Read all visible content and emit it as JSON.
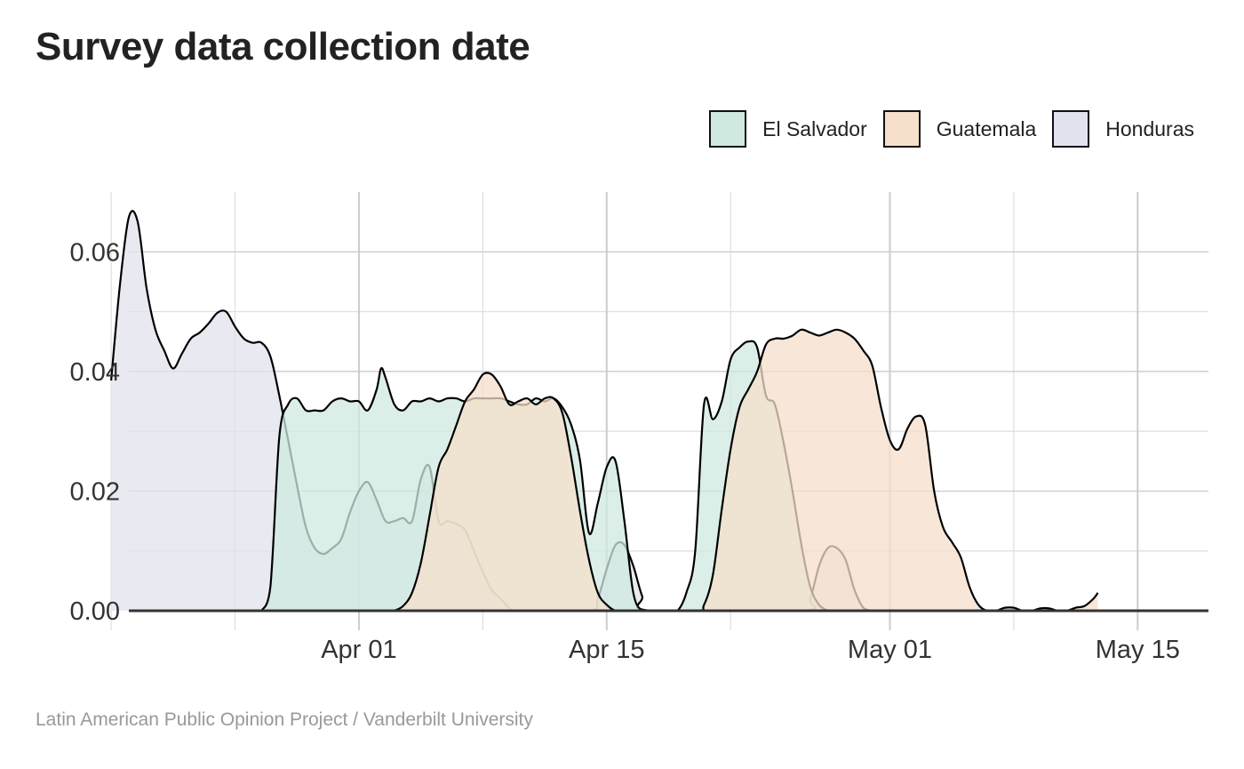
{
  "chart_data": {
    "type": "area",
    "title": "Survey data collection date",
    "caption": "Latin American Public Opinion Project / Vanderbilt University",
    "xlabel": "",
    "ylabel": "",
    "xlim": [
      "2023-03-19",
      "2023-05-19"
    ],
    "ylim": [
      0,
      0.07
    ],
    "x_ticks": [
      {
        "date": "2023-04-01",
        "label": "Apr 01"
      },
      {
        "date": "2023-04-15",
        "label": "Apr 15"
      },
      {
        "date": "2023-05-01",
        "label": "May 01"
      },
      {
        "date": "2023-05-15",
        "label": "May 15"
      }
    ],
    "x_minor_ticks": [
      "2023-03-18",
      "2023-03-25",
      "2023-04-08",
      "2023-04-22",
      "2023-05-08"
    ],
    "y_ticks": [
      {
        "value": 0,
        "label": "0.00"
      },
      {
        "value": 0.02,
        "label": "0.02"
      },
      {
        "value": 0.04,
        "label": "0.04"
      },
      {
        "value": 0.06,
        "label": "0.06"
      }
    ],
    "y_minor_ticks": [
      0.01,
      0.03,
      0.05
    ],
    "grid": true,
    "legend_position": "top-right",
    "series": [
      {
        "name": "El Salvador",
        "color": "#cfe9e0",
        "points": [
          [
            "2023-03-26T12:00",
            0
          ],
          [
            "2023-03-27",
            0.004
          ],
          [
            "2023-03-27T12:00",
            0.029
          ],
          [
            "2023-03-28",
            0.0345
          ],
          [
            "2023-03-28T12:00",
            0.0355
          ],
          [
            "2023-03-29",
            0.0335
          ],
          [
            "2023-03-29T12:00",
            0.0335
          ],
          [
            "2023-03-30",
            0.0335
          ],
          [
            "2023-03-30T12:00",
            0.035
          ],
          [
            "2023-03-31",
            0.0355
          ],
          [
            "2023-03-31T12:00",
            0.035
          ],
          [
            "2023-04-01",
            0.035
          ],
          [
            "2023-04-01T12:00",
            0.0335
          ],
          [
            "2023-04-02",
            0.037
          ],
          [
            "2023-04-02T06:00",
            0.0405
          ],
          [
            "2023-04-02T12:00",
            0.039
          ],
          [
            "2023-04-03",
            0.0345
          ],
          [
            "2023-04-03T12:00",
            0.0335
          ],
          [
            "2023-04-04",
            0.035
          ],
          [
            "2023-04-04T12:00",
            0.035
          ],
          [
            "2023-04-05",
            0.0355
          ],
          [
            "2023-04-05T12:00",
            0.035
          ],
          [
            "2023-04-06",
            0.0355
          ],
          [
            "2023-04-06T12:00",
            0.0355
          ],
          [
            "2023-04-07",
            0.035
          ],
          [
            "2023-04-07T12:00",
            0.0355
          ],
          [
            "2023-04-08",
            0.0355
          ],
          [
            "2023-04-08T12:00",
            0.0355
          ],
          [
            "2023-04-09",
            0.0355
          ],
          [
            "2023-04-09T12:00",
            0.035
          ],
          [
            "2023-04-10",
            0.0345
          ],
          [
            "2023-04-10T12:00",
            0.0345
          ],
          [
            "2023-04-11",
            0.0355
          ],
          [
            "2023-04-11T12:00",
            0.035
          ],
          [
            "2023-04-12",
            0.0355
          ],
          [
            "2023-04-12T12:00",
            0.034
          ],
          [
            "2023-04-13",
            0.031
          ],
          [
            "2023-04-13T12:00",
            0.025
          ],
          [
            "2023-04-14",
            0.013
          ],
          [
            "2023-04-14T12:00",
            0.018
          ],
          [
            "2023-04-15",
            0.024
          ],
          [
            "2023-04-15T12:00",
            0.025
          ],
          [
            "2023-04-16",
            0.015
          ],
          [
            "2023-04-16T12:00",
            0.003
          ],
          [
            "2023-04-17",
            0
          ],
          [
            "2023-04-17T12:00",
            0
          ],
          [
            "2023-04-18",
            0
          ],
          [
            "2023-04-18T12:00",
            0
          ],
          [
            "2023-04-19",
            0
          ],
          [
            "2023-04-19T12:00",
            0.003
          ],
          [
            "2023-04-20",
            0.01
          ],
          [
            "2023-04-20T12:00",
            0.0345
          ],
          [
            "2023-04-21",
            0.032
          ],
          [
            "2023-04-21T12:00",
            0.035
          ],
          [
            "2023-04-22",
            0.042
          ],
          [
            "2023-04-22T12:00",
            0.044
          ],
          [
            "2023-04-23",
            0.045
          ],
          [
            "2023-04-23T12:00",
            0.044
          ],
          [
            "2023-04-24",
            0.036
          ],
          [
            "2023-04-24T12:00",
            0.0345
          ],
          [
            "2023-04-25",
            0.028
          ],
          [
            "2023-04-25T12:00",
            0.02
          ],
          [
            "2023-04-26",
            0.011
          ],
          [
            "2023-04-26T12:00",
            0.004
          ],
          [
            "2023-04-27",
            0.001
          ],
          [
            "2023-04-27T12:00",
            0
          ]
        ]
      },
      {
        "name": "Guatemala",
        "color": "#f6dfcb",
        "points": [
          [
            "2023-04-03",
            0
          ],
          [
            "2023-04-03T12:00",
            0.0008
          ],
          [
            "2023-04-04",
            0.003
          ],
          [
            "2023-04-04T12:00",
            0.008
          ],
          [
            "2023-04-05",
            0.016
          ],
          [
            "2023-04-05T12:00",
            0.024
          ],
          [
            "2023-04-06",
            0.027
          ],
          [
            "2023-04-06T12:00",
            0.031
          ],
          [
            "2023-04-07",
            0.035
          ],
          [
            "2023-04-07T12:00",
            0.037
          ],
          [
            "2023-04-08",
            0.0395
          ],
          [
            "2023-04-08T12:00",
            0.0395
          ],
          [
            "2023-04-09",
            0.0375
          ],
          [
            "2023-04-09T12:00",
            0.0345
          ],
          [
            "2023-04-10",
            0.035
          ],
          [
            "2023-04-10T12:00",
            0.0355
          ],
          [
            "2023-04-11",
            0.0345
          ],
          [
            "2023-04-11T12:00",
            0.0355
          ],
          [
            "2023-04-12",
            0.0355
          ],
          [
            "2023-04-12T12:00",
            0.033
          ],
          [
            "2023-04-13",
            0.0255
          ],
          [
            "2023-04-13T12:00",
            0.0165
          ],
          [
            "2023-04-14",
            0.0085
          ],
          [
            "2023-04-14T12:00",
            0.003
          ],
          [
            "2023-04-15",
            0.001
          ],
          [
            "2023-04-15T12:00",
            0
          ],
          [
            "2023-04-16",
            0
          ],
          [
            "2023-04-20",
            0
          ],
          [
            "2023-04-20T12:00",
            0.001
          ],
          [
            "2023-04-21",
            0.006
          ],
          [
            "2023-04-21T12:00",
            0.017
          ],
          [
            "2023-04-22",
            0.027
          ],
          [
            "2023-04-22T12:00",
            0.034
          ],
          [
            "2023-04-23",
            0.037
          ],
          [
            "2023-04-23T12:00",
            0.04
          ],
          [
            "2023-04-24",
            0.0445
          ],
          [
            "2023-04-24T12:00",
            0.0455
          ],
          [
            "2023-04-25",
            0.0455
          ],
          [
            "2023-04-25T12:00",
            0.046
          ],
          [
            "2023-04-26",
            0.047
          ],
          [
            "2023-04-26T12:00",
            0.0465
          ],
          [
            "2023-04-27",
            0.046
          ],
          [
            "2023-04-27T12:00",
            0.0465
          ],
          [
            "2023-04-28",
            0.047
          ],
          [
            "2023-04-28T12:00",
            0.0465
          ],
          [
            "2023-04-29",
            0.0455
          ],
          [
            "2023-04-29T12:00",
            0.0435
          ],
          [
            "2023-04-30",
            0.041
          ],
          [
            "2023-04-30T12:00",
            0.034
          ],
          [
            "2023-05-01",
            0.0285
          ],
          [
            "2023-05-01T12:00",
            0.027
          ],
          [
            "2023-05-02",
            0.0305
          ],
          [
            "2023-05-02T12:00",
            0.0325
          ],
          [
            "2023-05-03",
            0.031
          ],
          [
            "2023-05-03T12:00",
            0.02
          ],
          [
            "2023-05-04",
            0.014
          ],
          [
            "2023-05-04T12:00",
            0.0115
          ],
          [
            "2023-05-05",
            0.009
          ],
          [
            "2023-05-05T12:00",
            0.004
          ],
          [
            "2023-05-06",
            0.001
          ],
          [
            "2023-05-06T12:00",
            0
          ],
          [
            "2023-05-07",
            0
          ],
          [
            "2023-05-07T12:00",
            0.0005
          ],
          [
            "2023-05-08",
            0.0005
          ],
          [
            "2023-05-08T12:00",
            0
          ],
          [
            "2023-05-09",
            0
          ],
          [
            "2023-05-09T12:00",
            0.0004
          ],
          [
            "2023-05-10",
            0.0004
          ],
          [
            "2023-05-10T12:00",
            0
          ],
          [
            "2023-05-11",
            0
          ],
          [
            "2023-05-11T12:00",
            0.0005
          ],
          [
            "2023-05-12",
            0.0008
          ],
          [
            "2023-05-12T12:00",
            0.002
          ],
          [
            "2023-05-12T18:00",
            0.003
          ]
        ]
      },
      {
        "name": "Honduras",
        "color": "#e2e1ee",
        "points": [
          [
            "2023-03-18",
            0.0385
          ],
          [
            "2023-03-18T12:00",
            0.0545
          ],
          [
            "2023-03-19",
            0.0658
          ],
          [
            "2023-03-19T12:00",
            0.065
          ],
          [
            "2023-03-20",
            0.054
          ],
          [
            "2023-03-20T12:00",
            0.047
          ],
          [
            "2023-03-21",
            0.0435
          ],
          [
            "2023-03-21T12:00",
            0.0405
          ],
          [
            "2023-03-22",
            0.043
          ],
          [
            "2023-03-22T12:00",
            0.0455
          ],
          [
            "2023-03-23",
            0.0465
          ],
          [
            "2023-03-23T12:00",
            0.048
          ],
          [
            "2023-03-24",
            0.0498
          ],
          [
            "2023-03-24T12:00",
            0.05
          ],
          [
            "2023-03-25",
            0.0475
          ],
          [
            "2023-03-25T12:00",
            0.0455
          ],
          [
            "2023-03-26",
            0.0448
          ],
          [
            "2023-03-26T12:00",
            0.0448
          ],
          [
            "2023-03-27",
            0.0425
          ],
          [
            "2023-03-27T12:00",
            0.036
          ],
          [
            "2023-03-28",
            0.0285
          ],
          [
            "2023-03-28T12:00",
            0.021
          ],
          [
            "2023-03-29",
            0.014
          ],
          [
            "2023-03-29T12:00",
            0.0105
          ],
          [
            "2023-03-30",
            0.0095
          ],
          [
            "2023-03-30T12:00",
            0.0105
          ],
          [
            "2023-03-31",
            0.012
          ],
          [
            "2023-03-31T12:00",
            0.0165
          ],
          [
            "2023-04-01",
            0.02
          ],
          [
            "2023-04-01T12:00",
            0.0215
          ],
          [
            "2023-04-02",
            0.0185
          ],
          [
            "2023-04-02T12:00",
            0.015
          ],
          [
            "2023-04-03",
            0.015
          ],
          [
            "2023-04-03T12:00",
            0.0155
          ],
          [
            "2023-04-04",
            0.015
          ],
          [
            "2023-04-04T12:00",
            0.022
          ],
          [
            "2023-04-05",
            0.024
          ],
          [
            "2023-04-05T12:00",
            0.015
          ],
          [
            "2023-04-06",
            0.015
          ],
          [
            "2023-04-06T12:00",
            0.0145
          ],
          [
            "2023-04-07",
            0.0135
          ],
          [
            "2023-04-07T12:00",
            0.01
          ],
          [
            "2023-04-08",
            0.0065
          ],
          [
            "2023-04-08T12:00",
            0.0035
          ],
          [
            "2023-04-09",
            0.002
          ],
          [
            "2023-04-09T12:00",
            0.0005
          ],
          [
            "2023-04-10",
            0
          ],
          [
            "2023-04-14",
            0
          ],
          [
            "2023-04-14T12:00",
            0.002
          ],
          [
            "2023-04-15",
            0.007
          ],
          [
            "2023-04-15T12:00",
            0.011
          ],
          [
            "2023-04-16",
            0.011
          ],
          [
            "2023-04-16T12:00",
            0.0075
          ],
          [
            "2023-04-17",
            0.0025
          ],
          [
            "2023-04-17T12:00",
            0
          ],
          [
            "2023-04-26",
            0
          ],
          [
            "2023-04-26T12:00",
            0.002
          ],
          [
            "2023-04-27",
            0.0075
          ],
          [
            "2023-04-27T12:00",
            0.0105
          ],
          [
            "2023-04-28",
            0.0105
          ],
          [
            "2023-04-28T12:00",
            0.0085
          ],
          [
            "2023-04-29",
            0.0035
          ],
          [
            "2023-04-29T12:00",
            0.0005
          ],
          [
            "2023-04-30",
            0
          ]
        ]
      }
    ]
  }
}
